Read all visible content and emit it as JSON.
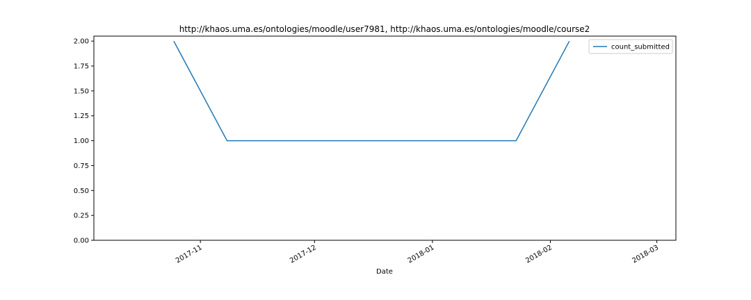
{
  "chart_data": {
    "type": "line",
    "title": "http://khaos.uma.es/ontologies/moodle/user7981, http://khaos.uma.es/ontologies/moodle/course2",
    "xlabel": "Date",
    "ylabel": "",
    "x_type": "date",
    "xlim": [
      "2017-10-04",
      "2018-03-06"
    ],
    "ylim": [
      0,
      2.05
    ],
    "x_ticks": [
      "2017-11-01",
      "2017-12-01",
      "2018-01-01",
      "2018-02-01",
      "2018-03-01"
    ],
    "x_tick_labels": [
      "2017-11",
      "2017-12",
      "2018-01",
      "2018-02",
      "2018-03"
    ],
    "y_ticks": [
      0,
      0.25,
      0.5,
      0.75,
      1.0,
      1.25,
      1.5,
      1.75,
      2.0
    ],
    "y_tick_labels": [
      "0.00",
      "0.25",
      "0.50",
      "0.75",
      "1.00",
      "1.25",
      "1.50",
      "1.75",
      "2.00"
    ],
    "legend": "upper-right",
    "grid": false,
    "series": [
      {
        "name": "count_submitted",
        "color": "#1f77b4",
        "x": [
          "2017-10-25",
          "2017-11-08",
          "2018-01-23",
          "2018-02-06"
        ],
        "y": [
          2,
          1,
          1,
          2
        ]
      }
    ]
  }
}
